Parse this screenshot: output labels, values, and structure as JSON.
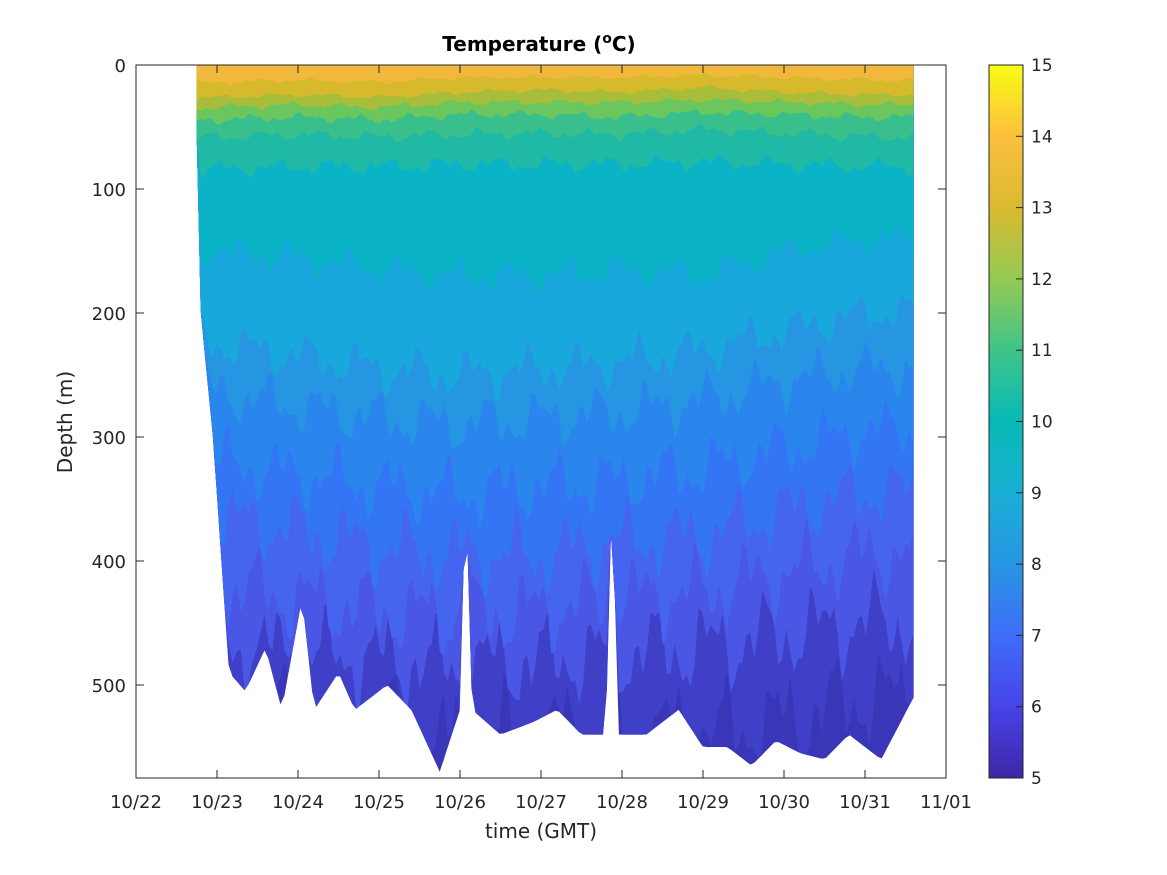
{
  "chart_data": {
    "type": "heatmap",
    "subtype": "filled-contour",
    "title": "Temperature (°C)",
    "title_parts": {
      "prefix": "Temperature (",
      "superscript": "o",
      "suffix": "C)"
    },
    "xlabel": "time (GMT)",
    "ylabel": "Depth (m)",
    "x_tick_labels": [
      "10/22",
      "10/23",
      "10/24",
      "10/25",
      "10/26",
      "10/27",
      "10/28",
      "10/29",
      "10/30",
      "10/31",
      "11/01"
    ],
    "y_tick_values": [
      0,
      100,
      200,
      300,
      400,
      500
    ],
    "y_reversed": true,
    "xlim_days": [
      0,
      10
    ],
    "ylim": [
      0,
      575
    ],
    "colorbar": {
      "ticks": [
        5,
        6,
        7,
        8,
        9,
        10,
        11,
        12,
        13,
        14,
        15
      ],
      "range": [
        5,
        15
      ],
      "colormap": "parula"
    },
    "data_time_range": [
      "10/22 18:00",
      "10/31 15:00"
    ],
    "contour_levels": [
      {
        "temp_above": 13,
        "color": "#F2B83B",
        "mean_depth_by_day": [
          18,
          14,
          12,
          14,
          10,
          10,
          10,
          8,
          10,
          12
        ]
      },
      {
        "temp_above": 12,
        "color": "#D6BA2C",
        "mean_depth_by_day": [
          30,
          26,
          24,
          26,
          22,
          20,
          22,
          18,
          22,
          24
        ]
      },
      {
        "temp_above": 11,
        "color": "#A8BD3A",
        "mean_depth_by_day": [
          38,
          34,
          32,
          34,
          30,
          30,
          30,
          28,
          30,
          32
        ]
      },
      {
        "temp_above": 10.5,
        "color": "#6CC65E",
        "mean_depth_by_day": [
          48,
          44,
          42,
          44,
          40,
          40,
          42,
          38,
          40,
          42
        ]
      },
      {
        "temp_above": 10,
        "color": "#38BF8C",
        "mean_depth_by_day": [
          62,
          58,
          56,
          58,
          56,
          55,
          56,
          52,
          55,
          58
        ]
      },
      {
        "temp_above": 9.5,
        "color": "#1FB9A6",
        "mean_depth_by_day": [
          88,
          84,
          82,
          82,
          80,
          80,
          80,
          78,
          80,
          82
        ]
      },
      {
        "temp_above": 9,
        "color": "#0BB3C7",
        "mean_depth_by_day": [
          145,
          150,
          155,
          165,
          170,
          170,
          165,
          170,
          150,
          140
        ]
      },
      {
        "temp_above": 8.5,
        "color": "#18A8DC",
        "mean_depth_by_day": [
          215,
          225,
          235,
          245,
          250,
          245,
          240,
          230,
          215,
          200
        ]
      },
      {
        "temp_above": 8,
        "color": "#2796E2",
        "mean_depth_by_day": [
          260,
          265,
          275,
          285,
          290,
          285,
          280,
          270,
          255,
          245
        ]
      },
      {
        "temp_above": 7.5,
        "color": "#2A86EC",
        "mean_depth_by_day": [
          310,
          320,
          330,
          340,
          345,
          340,
          335,
          325,
          310,
          295
        ]
      },
      {
        "temp_above": 7,
        "color": "#3475F6",
        "mean_depth_by_day": [
          355,
          365,
          375,
          390,
          395,
          395,
          385,
          380,
          360,
          345
        ]
      },
      {
        "temp_above": 6.5,
        "color": "#4565F0",
        "mean_depth_by_day": [
          420,
          420,
          430,
          440,
          445,
          440,
          430,
          425,
          410,
          395
        ]
      },
      {
        "temp_above": 6,
        "color": "#4A57E4",
        "mean_depth_by_day": [
          470,
          470,
          475,
          480,
          485,
          480,
          475,
          470,
          460,
          450
        ]
      },
      {
        "temp_above": 5.5,
        "color": "#3F3FC7",
        "mean_depth_by_day": [
          520,
          525,
          530,
          540,
          545,
          540,
          540,
          540,
          530,
          510
        ]
      }
    ],
    "bottom_profile_max_depth": [
      [
        0.75,
        60
      ],
      [
        0.8,
        200
      ],
      [
        0.95,
        300
      ],
      [
        1.15,
        490
      ],
      [
        1.35,
        505
      ],
      [
        1.6,
        470
      ],
      [
        1.8,
        520
      ],
      [
        2.05,
        430
      ],
      [
        2.2,
        520
      ],
      [
        2.5,
        490
      ],
      [
        2.7,
        520
      ],
      [
        3.1,
        500
      ],
      [
        3.4,
        520
      ],
      [
        3.75,
        570
      ],
      [
        4.0,
        520
      ],
      [
        4.07,
        340
      ],
      [
        4.15,
        520
      ],
      [
        4.5,
        540
      ],
      [
        4.9,
        530
      ],
      [
        5.2,
        520
      ],
      [
        5.5,
        540
      ],
      [
        5.8,
        540
      ],
      [
        5.88,
        335
      ],
      [
        5.95,
        540
      ],
      [
        6.3,
        540
      ],
      [
        6.7,
        520
      ],
      [
        7.0,
        550
      ],
      [
        7.3,
        550
      ],
      [
        7.6,
        565
      ],
      [
        7.9,
        545
      ],
      [
        8.2,
        555
      ],
      [
        8.5,
        560
      ],
      [
        8.8,
        540
      ],
      [
        9.2,
        560
      ],
      [
        9.6,
        510
      ]
    ]
  }
}
